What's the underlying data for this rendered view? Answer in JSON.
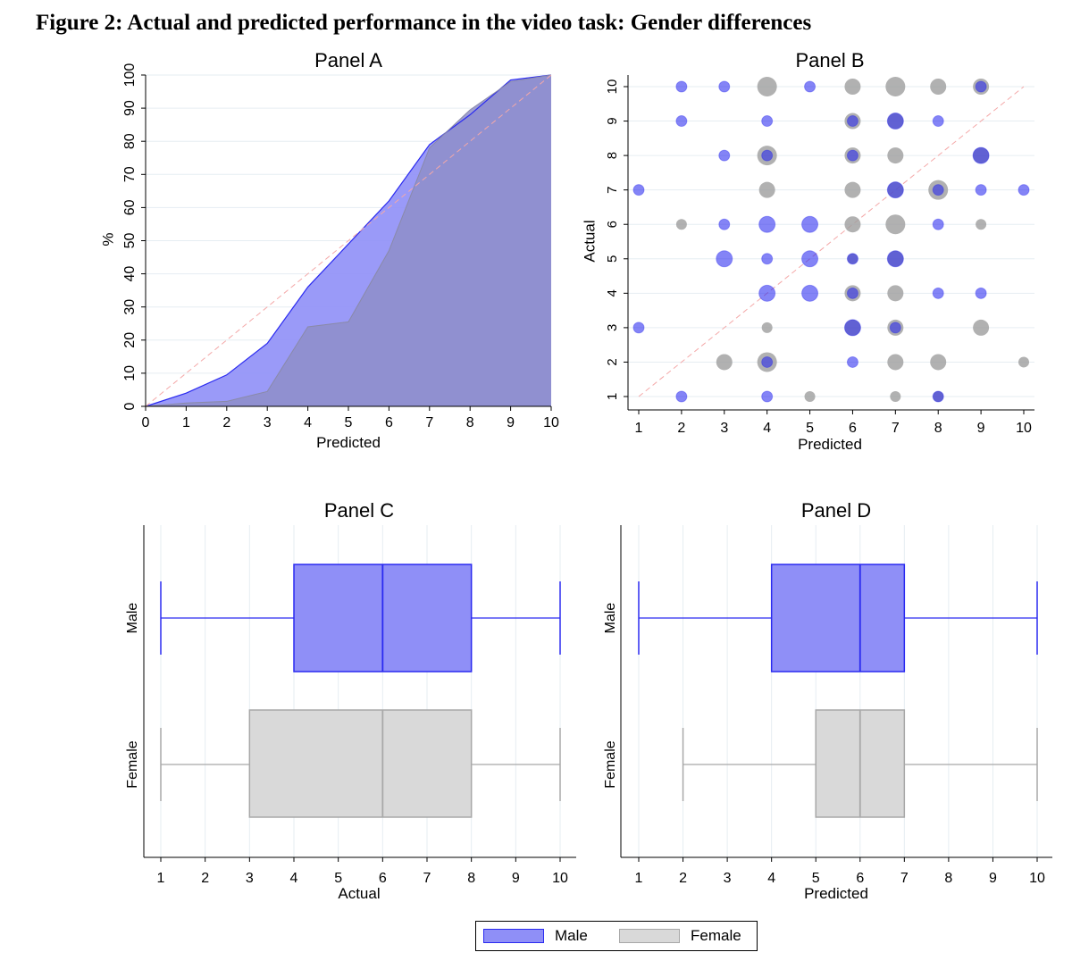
{
  "figure_title": "Figure 2: Actual and predicted performance in the video task: Gender differences",
  "colors": {
    "male_fill": "#8f8ff7",
    "male_line": "#2a2af0",
    "male_dot": "#1f1fef",
    "female_fill": "#d9d9d9",
    "female_line": "#a8a8a8",
    "female_dot": "#9e9e9e",
    "overlap": "#8e8ec9",
    "diagonal": "#f4a8a8",
    "grid": "#e6edf2"
  },
  "legend": {
    "male_label": "Male",
    "female_label": "Female"
  },
  "chart_data": [
    {
      "id": "panel-a",
      "type": "area",
      "title": "Panel A",
      "xlabel": "Predicted",
      "ylabel": "%",
      "xlim": [
        0,
        10
      ],
      "ylim": [
        0,
        100
      ],
      "xticks": [
        0,
        1,
        2,
        3,
        4,
        5,
        6,
        7,
        8,
        9,
        10
      ],
      "yticks": [
        0,
        10,
        20,
        30,
        40,
        50,
        60,
        70,
        80,
        90,
        100
      ],
      "x": [
        0,
        1,
        2,
        3,
        4,
        5,
        6,
        7,
        8,
        9,
        10
      ],
      "series": [
        {
          "name": "Male",
          "values": [
            0,
            4,
            9.5,
            19,
            36,
            49,
            62,
            79,
            88,
            98.5,
            100
          ]
        },
        {
          "name": "Female",
          "values": [
            0,
            1,
            1.5,
            4.5,
            24,
            25.5,
            47,
            78,
            89.5,
            98,
            100
          ]
        }
      ],
      "reference_line": {
        "from": [
          0,
          0
        ],
        "to": [
          10,
          100
        ]
      }
    },
    {
      "id": "panel-b",
      "type": "scatter",
      "title": "Panel B",
      "xlabel": "Predicted",
      "ylabel": "Actual",
      "xlim": [
        1,
        10
      ],
      "ylim": [
        1,
        10
      ],
      "xticks": [
        1,
        2,
        3,
        4,
        5,
        6,
        7,
        8,
        9,
        10
      ],
      "yticks": [
        1,
        2,
        3,
        4,
        5,
        6,
        7,
        8,
        9,
        10
      ],
      "reference_line": {
        "from": [
          1,
          1
        ],
        "to": [
          10,
          10
        ]
      },
      "series": [
        {
          "name": "Female",
          "points": [
            [
              4,
              10,
              3
            ],
            [
              6,
              10,
              2
            ],
            [
              7,
              10,
              3
            ],
            [
              8,
              10,
              2
            ],
            [
              9,
              10,
              2
            ],
            [
              6,
              9,
              2
            ],
            [
              7,
              9,
              2
            ],
            [
              4,
              8,
              3
            ],
            [
              6,
              8,
              2
            ],
            [
              7,
              8,
              2
            ],
            [
              9,
              8,
              2
            ],
            [
              4,
              7,
              2
            ],
            [
              6,
              7,
              2
            ],
            [
              7,
              7,
              2
            ],
            [
              8,
              7,
              3
            ],
            [
              2,
              6,
              1
            ],
            [
              6,
              6,
              2
            ],
            [
              7,
              6,
              3
            ],
            [
              9,
              6,
              1
            ],
            [
              6,
              5,
              1
            ],
            [
              7,
              5,
              2
            ],
            [
              6,
              4,
              2
            ],
            [
              7,
              4,
              2
            ],
            [
              4,
              3,
              1
            ],
            [
              6,
              3,
              2
            ],
            [
              7,
              3,
              2
            ],
            [
              9,
              3,
              2
            ],
            [
              3,
              2,
              2
            ],
            [
              4,
              2,
              3
            ],
            [
              7,
              2,
              2
            ],
            [
              8,
              2,
              2
            ],
            [
              10,
              2,
              1
            ],
            [
              5,
              1,
              1
            ],
            [
              7,
              1,
              1
            ],
            [
              8,
              1,
              1
            ]
          ]
        },
        {
          "name": "Male",
          "points": [
            [
              2,
              10,
              1
            ],
            [
              3,
              10,
              1
            ],
            [
              5,
              10,
              1
            ],
            [
              9,
              10,
              1
            ],
            [
              2,
              9,
              1
            ],
            [
              4,
              9,
              1
            ],
            [
              6,
              9,
              1
            ],
            [
              7,
              9,
              2
            ],
            [
              8,
              9,
              1
            ],
            [
              3,
              8,
              1
            ],
            [
              4,
              8,
              1
            ],
            [
              6,
              8,
              1
            ],
            [
              9,
              8,
              2
            ],
            [
              1,
              7,
              1
            ],
            [
              7,
              7,
              2
            ],
            [
              8,
              7,
              1
            ],
            [
              9,
              7,
              1
            ],
            [
              10,
              7,
              1
            ],
            [
              3,
              6,
              1
            ],
            [
              4,
              6,
              2
            ],
            [
              5,
              6,
              2
            ],
            [
              8,
              6,
              1
            ],
            [
              3,
              5,
              2
            ],
            [
              4,
              5,
              1
            ],
            [
              5,
              5,
              2
            ],
            [
              6,
              5,
              1
            ],
            [
              7,
              5,
              2
            ],
            [
              4,
              4,
              2
            ],
            [
              5,
              4,
              2
            ],
            [
              6,
              4,
              1
            ],
            [
              8,
              4,
              1
            ],
            [
              9,
              4,
              1
            ],
            [
              1,
              3,
              1
            ],
            [
              6,
              3,
              2
            ],
            [
              7,
              3,
              1
            ],
            [
              4,
              2,
              1
            ],
            [
              6,
              2,
              1
            ],
            [
              2,
              1,
              1
            ],
            [
              4,
              1,
              1
            ],
            [
              8,
              1,
              1
            ]
          ]
        }
      ]
    },
    {
      "id": "panel-c",
      "type": "boxplot",
      "title": "Panel C",
      "xlabel": "Actual",
      "xlim": [
        1,
        10
      ],
      "xticks": [
        1,
        2,
        3,
        4,
        5,
        6,
        7,
        8,
        9,
        10
      ],
      "groups": [
        {
          "name": "Male",
          "min": 1,
          "q1": 4,
          "median": 6,
          "q3": 8,
          "max": 10
        },
        {
          "name": "Female",
          "min": 1,
          "q1": 3,
          "median": 6,
          "q3": 8,
          "max": 10
        }
      ]
    },
    {
      "id": "panel-d",
      "type": "boxplot",
      "title": "Panel D",
      "xlabel": "Predicted",
      "xlim": [
        1,
        10
      ],
      "xticks": [
        1,
        2,
        3,
        4,
        5,
        6,
        7,
        8,
        9,
        10
      ],
      "groups": [
        {
          "name": "Male",
          "min": 1,
          "q1": 4,
          "median": 6,
          "q3": 7,
          "max": 10
        },
        {
          "name": "Female",
          "min": 2,
          "q1": 5,
          "median": 6,
          "q3": 7,
          "max": 10
        }
      ]
    }
  ]
}
